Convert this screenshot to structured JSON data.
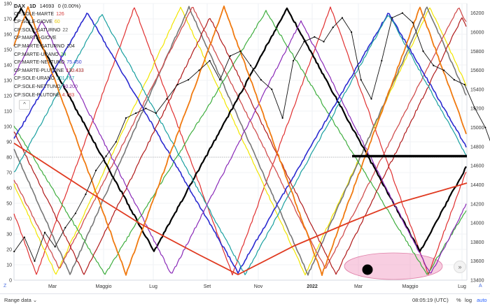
{
  "legend": {
    "symbol": "DAX",
    "interval": "1D",
    "price": "14693",
    "change": "0 (0.00%)",
    "indicators": [
      {
        "name": "CP:SOLE-MARTE",
        "value": "126",
        "color": "#d43b3b"
      },
      {
        "name": "CP:SOLE-GIOVE",
        "value": "60",
        "color": "#e6c800"
      },
      {
        "name": "CP:SOLE-SATURNO",
        "value": "22",
        "color": "#555555"
      },
      {
        "name": "CP:MARTE-GIOVE",
        "value": "",
        "color": "#d43b3b"
      },
      {
        "name": "CP:MARTE-SATURNO",
        "value": "104",
        "color": "#222222"
      },
      {
        "name": "CP:MARTE-URANO",
        "value": "24",
        "color": "#2aa02a"
      },
      {
        "name": "CP:MARTE-NETTUNO",
        "value": "75.450",
        "color": "#3b3bd4"
      },
      {
        "name": "CP:MARTE-PLUTONE",
        "value": "130.433",
        "color": "#a01a1a"
      },
      {
        "name": "CP:SOLE-URANO",
        "value": "101.767",
        "color": "#1aa0a0"
      },
      {
        "name": "CP:SOLE-NETTUNO",
        "value": "50.200",
        "color": "#7a2aa0"
      },
      {
        "name": "CP:SOLE-PLUTONE",
        "value": "4.783",
        "color": "#d43b3b"
      }
    ]
  },
  "chart_data": {
    "type": "line",
    "title": "DAX 1D",
    "x_labels": [
      "Mar",
      "Maggio",
      "Lug",
      "Set",
      "Nov",
      "2022",
      "Mar",
      "Maggio",
      "Lug"
    ],
    "left_axis": {
      "ticks": [
        0,
        10,
        20,
        30,
        40,
        50,
        60,
        70,
        80,
        90,
        100,
        110,
        120,
        130,
        140,
        150,
        160,
        170,
        180
      ],
      "ylim": [
        0,
        180
      ]
    },
    "right_axis": {
      "ticks": [
        13400,
        13600,
        13800,
        14000,
        14200,
        14400,
        14600,
        14800,
        15000,
        15200,
        15400,
        15600,
        15800,
        16000,
        16200
      ],
      "ylim": [
        13400,
        16300
      ]
    },
    "reference_line": {
      "axis": "left",
      "value": 80
    },
    "price_series": {
      "name": "DAX",
      "points": [
        [
          0.0,
          13700
        ],
        [
          0.2,
          13850
        ],
        [
          0.4,
          13600
        ],
        [
          0.6,
          13900
        ],
        [
          0.8,
          13750
        ],
        [
          1.0,
          13950
        ],
        [
          1.2,
          14100
        ],
        [
          1.4,
          14300
        ],
        [
          1.6,
          14550
        ],
        [
          1.8,
          14700
        ],
        [
          2.0,
          14850
        ],
        [
          2.2,
          15100
        ],
        [
          2.4,
          15150
        ],
        [
          2.6,
          15200
        ],
        [
          2.8,
          15150
        ],
        [
          3.0,
          15300
        ],
        [
          3.2,
          15450
        ],
        [
          3.4,
          15500
        ],
        [
          3.6,
          15600
        ],
        [
          3.8,
          15700
        ],
        [
          4.0,
          15500
        ],
        [
          4.2,
          15750
        ],
        [
          4.4,
          15800
        ],
        [
          4.6,
          15650
        ],
        [
          4.8,
          15500
        ],
        [
          5.0,
          15400
        ],
        [
          5.2,
          15100
        ],
        [
          5.4,
          15700
        ],
        [
          5.6,
          15900
        ],
        [
          5.8,
          15950
        ],
        [
          6.0,
          15900
        ],
        [
          6.2,
          16050
        ],
        [
          6.4,
          16150
        ],
        [
          6.6,
          16000
        ],
        [
          6.8,
          15500
        ],
        [
          7.0,
          15300
        ],
        [
          7.2,
          15700
        ],
        [
          7.4,
          16150
        ],
        [
          7.6,
          16200
        ],
        [
          7.8,
          16100
        ],
        [
          8.0,
          15800
        ],
        [
          8.2,
          15650
        ],
        [
          8.4,
          15600
        ],
        [
          8.6,
          15500
        ],
        [
          8.8,
          15450
        ],
        [
          9.0,
          15200
        ],
        [
          9.2,
          15000
        ],
        [
          9.4,
          14700
        ]
      ]
    },
    "series": [
      {
        "name": "CP:SOLE-MARTE",
        "color": "#e03030"
      },
      {
        "name": "CP:SOLE-GIOVE",
        "color": "#f2e600"
      },
      {
        "name": "CP:SOLE-SATURNO",
        "color": "#777777"
      },
      {
        "name": "CP:MARTE-GIOVE",
        "color": "#d05050"
      },
      {
        "name": "CP:MARTE-SATURNO",
        "color": "#000000"
      },
      {
        "name": "CP:MARTE-URANO",
        "color": "#3fae3f"
      },
      {
        "name": "CP:MARTE-NETTUNO",
        "color": "#2b2bd0"
      },
      {
        "name": "CP:MARTE-PLUTONE",
        "color": "#b01a1a"
      },
      {
        "name": "CP:SOLE-URANO",
        "color": "#1aa0a0"
      },
      {
        "name": "CP:SOLE-NETTUNO",
        "color": "#8a2ab8"
      },
      {
        "name": "CP:SOLE-PLUTONE",
        "color": "#f07a10"
      }
    ],
    "highlight_ellipse": {
      "color": "#f3a6c8"
    },
    "horizontal_level": {
      "axis": "right",
      "value": 14700
    }
  },
  "bottom_bar": {
    "range_label": "Range data",
    "time": "08:05:19 (UTC)",
    "percent": "%",
    "log": "log",
    "auto": "auto"
  },
  "corners": {
    "left": "Z",
    "right": "A"
  },
  "buttons": {
    "collapse": "^",
    "scroll": "»"
  }
}
